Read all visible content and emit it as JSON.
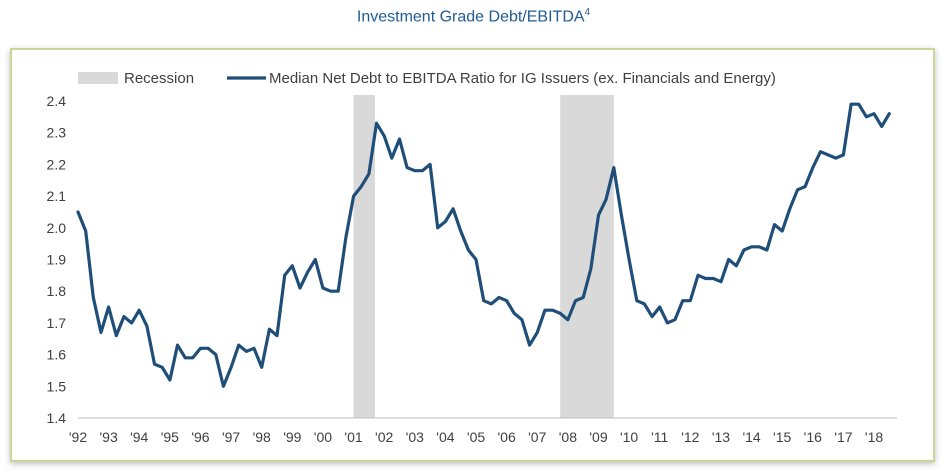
{
  "title": {
    "text": "Investment Grade Debt/EBITDA",
    "footnote": "4"
  },
  "chart_data": {
    "type": "line",
    "title": "Investment Grade Debt/EBITDA",
    "xlabel": "",
    "ylabel": "",
    "ylim": [
      1.4,
      2.4
    ],
    "yticks": [
      1.4,
      1.5,
      1.6,
      1.7,
      1.8,
      1.9,
      2.0,
      2.1,
      2.2,
      2.3,
      2.4
    ],
    "ytick_labels": [
      "1.4",
      "1.5",
      "1.6",
      "1.7",
      "1.8",
      "1.9",
      "2.0",
      "2.1",
      "2.2",
      "2.3",
      "2.4"
    ],
    "xlim": [
      1992.0,
      2018.75
    ],
    "xticks": [
      1992,
      1993,
      1994,
      1995,
      1996,
      1997,
      1998,
      1999,
      2000,
      2001,
      2002,
      2003,
      2004,
      2005,
      2006,
      2007,
      2008,
      2009,
      2010,
      2011,
      2012,
      2013,
      2014,
      2015,
      2016,
      2017,
      2018
    ],
    "xtick_labels": [
      "'92",
      "'93",
      "'94",
      "'95",
      "'96",
      "'97",
      "'98",
      "'99",
      "'00",
      "'01",
      "'02",
      "'03",
      "'04",
      "'05",
      "'06",
      "'07",
      "'08",
      "'09",
      "'10",
      "'11",
      "'12",
      "'13",
      "'14",
      "'15",
      "'16",
      "'17",
      "'18"
    ],
    "grid": false,
    "legend_position": "top",
    "recession_label": "Recession",
    "recession_color": "#d9d9d9",
    "recessions": [
      [
        2001.0,
        2001.7
      ],
      [
        2007.75,
        2009.5
      ]
    ],
    "series": [
      {
        "name": "Median Net Debt to EBITDA Ratio for IG Issuers (ex. Financials and Energy)",
        "color": "#1f4e79",
        "x": [
          1992.0,
          1992.25,
          1992.5,
          1992.75,
          1993.0,
          1993.25,
          1993.5,
          1993.75,
          1994.0,
          1994.25,
          1994.5,
          1994.75,
          1995.0,
          1995.25,
          1995.5,
          1995.75,
          1996.0,
          1996.25,
          1996.5,
          1996.75,
          1997.0,
          1997.25,
          1997.5,
          1997.75,
          1998.0,
          1998.25,
          1998.5,
          1998.75,
          1999.0,
          1999.25,
          1999.5,
          1999.75,
          2000.0,
          2000.25,
          2000.5,
          2000.75,
          2001.0,
          2001.25,
          2001.5,
          2001.75,
          2002.0,
          2002.25,
          2002.5,
          2002.75,
          2003.0,
          2003.25,
          2003.5,
          2003.75,
          2004.0,
          2004.25,
          2004.5,
          2004.75,
          2005.0,
          2005.25,
          2005.5,
          2005.75,
          2006.0,
          2006.25,
          2006.5,
          2006.75,
          2007.0,
          2007.25,
          2007.5,
          2007.75,
          2008.0,
          2008.25,
          2008.5,
          2008.75,
          2009.0,
          2009.25,
          2009.5,
          2009.75,
          2010.0,
          2010.25,
          2010.5,
          2010.75,
          2011.0,
          2011.25,
          2011.5,
          2011.75,
          2012.0,
          2012.25,
          2012.5,
          2012.75,
          2013.0,
          2013.25,
          2013.5,
          2013.75,
          2014.0,
          2014.25,
          2014.5,
          2014.75,
          2015.0,
          2015.25,
          2015.5,
          2015.75,
          2016.0,
          2016.25,
          2016.5,
          2016.75,
          2017.0,
          2017.25,
          2017.5,
          2017.75,
          2018.0,
          2018.25,
          2018.5
        ],
        "values": [
          2.05,
          1.99,
          1.78,
          1.67,
          1.75,
          1.66,
          1.72,
          1.7,
          1.74,
          1.69,
          1.57,
          1.56,
          1.52,
          1.63,
          1.59,
          1.59,
          1.62,
          1.62,
          1.6,
          1.5,
          1.56,
          1.63,
          1.61,
          1.62,
          1.56,
          1.68,
          1.66,
          1.85,
          1.88,
          1.81,
          1.86,
          1.9,
          1.81,
          1.8,
          1.8,
          1.97,
          2.1,
          2.13,
          2.17,
          2.33,
          2.29,
          2.22,
          2.28,
          2.19,
          2.18,
          2.18,
          2.2,
          2.0,
          2.02,
          2.06,
          1.99,
          1.93,
          1.9,
          1.77,
          1.76,
          1.78,
          1.77,
          1.73,
          1.71,
          1.63,
          1.67,
          1.74,
          1.74,
          1.73,
          1.71,
          1.77,
          1.78,
          1.87,
          2.04,
          2.09,
          2.19,
          2.04,
          1.9,
          1.77,
          1.76,
          1.72,
          1.75,
          1.7,
          1.71,
          1.77,
          1.77,
          1.85,
          1.84,
          1.84,
          1.83,
          1.9,
          1.88,
          1.93,
          1.94,
          1.94,
          1.93,
          2.01,
          1.99,
          2.06,
          2.12,
          2.13,
          2.19,
          2.24,
          2.23,
          2.22,
          2.23,
          2.39,
          2.39,
          2.35,
          2.36,
          2.32,
          2.36
        ]
      }
    ]
  }
}
